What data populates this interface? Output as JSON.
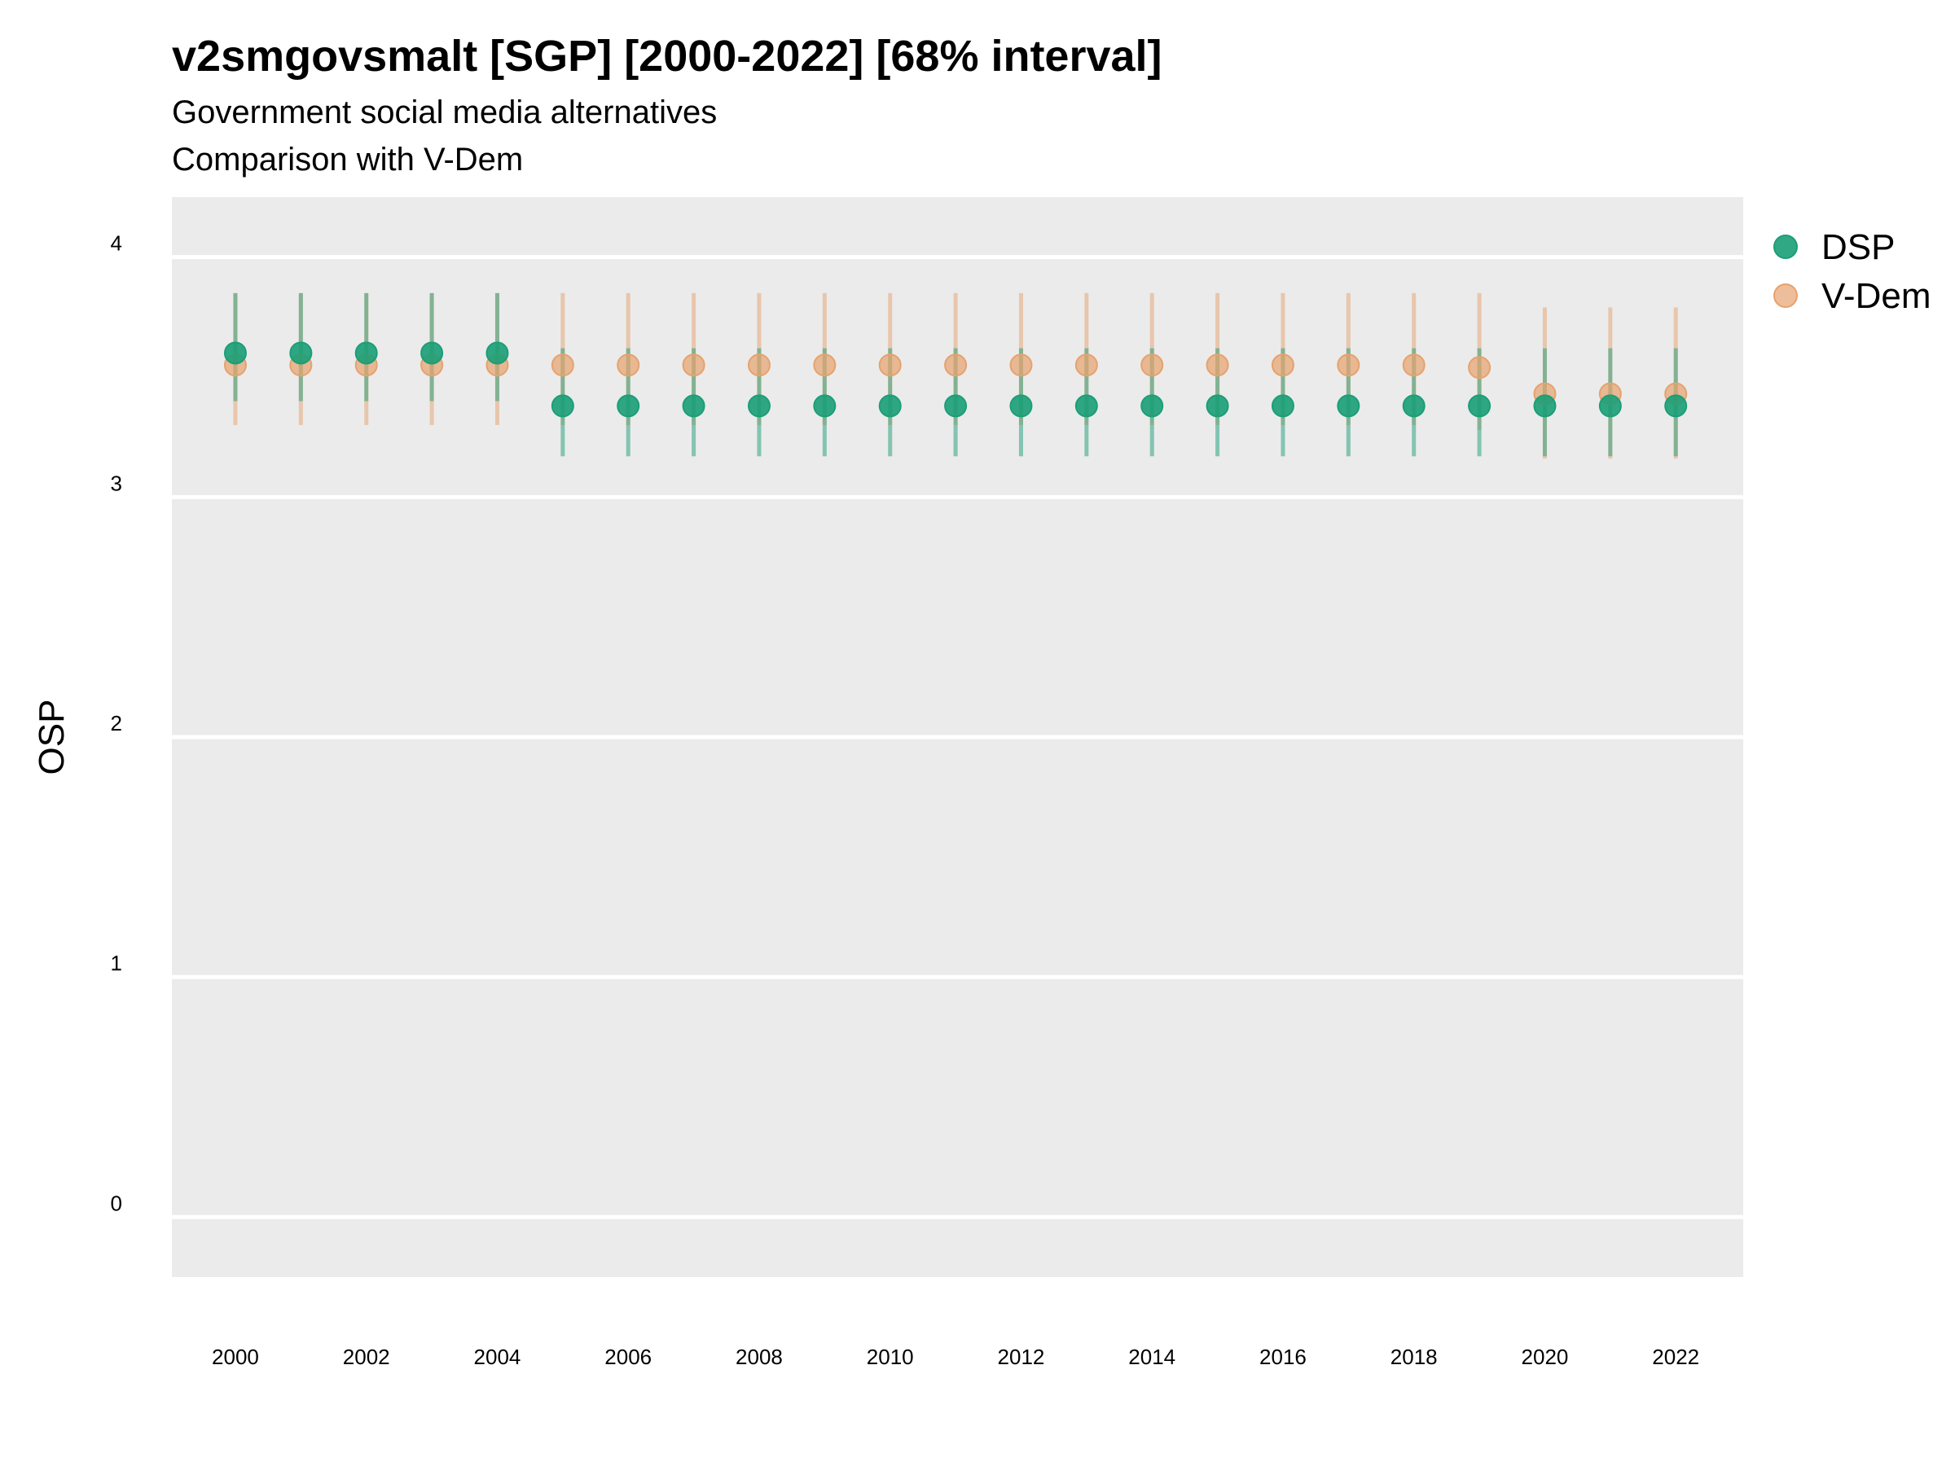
{
  "chart_data": {
    "type": "scatter",
    "title": "v2smgovsmalt [SGP] [2000-2022] [68% interval]",
    "subtitle": "Government social media alternatives",
    "subtitle2": "Comparison with V-Dem",
    "xlabel": "",
    "ylabel": "OSP",
    "ylim": [
      -0.25,
      4.25
    ],
    "yticks": [
      0,
      1,
      2,
      3,
      4
    ],
    "xlim": [
      1999.03,
      2023.03
    ],
    "xticks": [
      2000,
      2002,
      2004,
      2006,
      2008,
      2010,
      2012,
      2014,
      2016,
      2018,
      2020,
      2022
    ],
    "grid": true,
    "legend_position": "right",
    "x": [
      2000,
      2001,
      2002,
      2003,
      2004,
      2005,
      2006,
      2007,
      2008,
      2009,
      2010,
      2011,
      2012,
      2013,
      2014,
      2015,
      2016,
      2017,
      2018,
      2019,
      2020,
      2021,
      2022
    ],
    "series": [
      {
        "name": "DSP",
        "color": "#1b9e77",
        "values": [
          3.6,
          3.6,
          3.6,
          3.6,
          3.6,
          3.38,
          3.38,
          3.38,
          3.38,
          3.38,
          3.38,
          3.38,
          3.38,
          3.38,
          3.38,
          3.38,
          3.38,
          3.38,
          3.38,
          3.38,
          3.38,
          3.38,
          3.38
        ],
        "lower": [
          3.4,
          3.4,
          3.4,
          3.4,
          3.4,
          3.17,
          3.17,
          3.17,
          3.17,
          3.17,
          3.17,
          3.17,
          3.17,
          3.17,
          3.17,
          3.17,
          3.17,
          3.17,
          3.17,
          3.17,
          3.17,
          3.17,
          3.17
        ],
        "upper": [
          3.85,
          3.85,
          3.85,
          3.85,
          3.85,
          3.62,
          3.62,
          3.62,
          3.62,
          3.62,
          3.62,
          3.62,
          3.62,
          3.62,
          3.62,
          3.62,
          3.62,
          3.62,
          3.62,
          3.62,
          3.62,
          3.62,
          3.62
        ]
      },
      {
        "name": "V-Dem",
        "color": "#e6a26d",
        "values": [
          3.55,
          3.55,
          3.55,
          3.55,
          3.55,
          3.55,
          3.55,
          3.55,
          3.55,
          3.55,
          3.55,
          3.55,
          3.55,
          3.55,
          3.55,
          3.55,
          3.55,
          3.55,
          3.55,
          3.54,
          3.43,
          3.43,
          3.43
        ],
        "lower": [
          3.3,
          3.3,
          3.3,
          3.3,
          3.3,
          3.3,
          3.3,
          3.3,
          3.3,
          3.3,
          3.3,
          3.3,
          3.3,
          3.3,
          3.3,
          3.3,
          3.3,
          3.3,
          3.3,
          3.28,
          3.16,
          3.16,
          3.16
        ],
        "upper": [
          3.85,
          3.85,
          3.85,
          3.85,
          3.85,
          3.85,
          3.85,
          3.85,
          3.85,
          3.85,
          3.85,
          3.85,
          3.85,
          3.85,
          3.85,
          3.85,
          3.85,
          3.85,
          3.85,
          3.85,
          3.79,
          3.79,
          3.79
        ]
      }
    ],
    "colors": {
      "panel_background": "#ebebeb",
      "grid": "#ffffff"
    }
  }
}
